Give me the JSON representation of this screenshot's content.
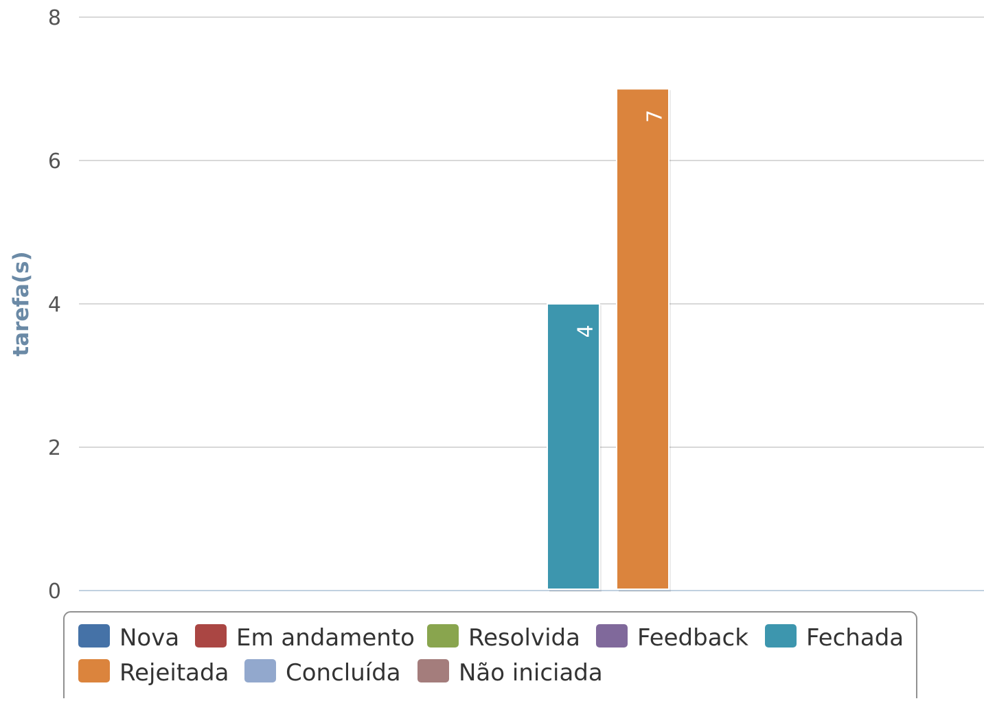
{
  "chart_data": {
    "type": "bar",
    "title": "",
    "ylabel": "tarefa(s)",
    "ylim": [
      0,
      8
    ],
    "yticks": [
      0,
      2,
      4,
      6,
      8
    ],
    "grid": true,
    "legend_position": "bottom",
    "series": [
      {
        "name": "Nova",
        "value": 0,
        "color": "#4572A7"
      },
      {
        "name": "Em andamento",
        "value": 0,
        "color": "#AA4643"
      },
      {
        "name": "Resolvida",
        "value": 0,
        "color": "#89A54E"
      },
      {
        "name": "Feedback",
        "value": 0,
        "color": "#80699B"
      },
      {
        "name": "Fechada",
        "value": 4,
        "color": "#3D96AE"
      },
      {
        "name": "Rejeitada",
        "value": 7,
        "color": "#DB843D"
      },
      {
        "name": "Concluída",
        "value": 0,
        "color": "#92A8CD"
      },
      {
        "name": "Não iniciada",
        "value": 0,
        "color": "#A47D7C"
      }
    ]
  }
}
